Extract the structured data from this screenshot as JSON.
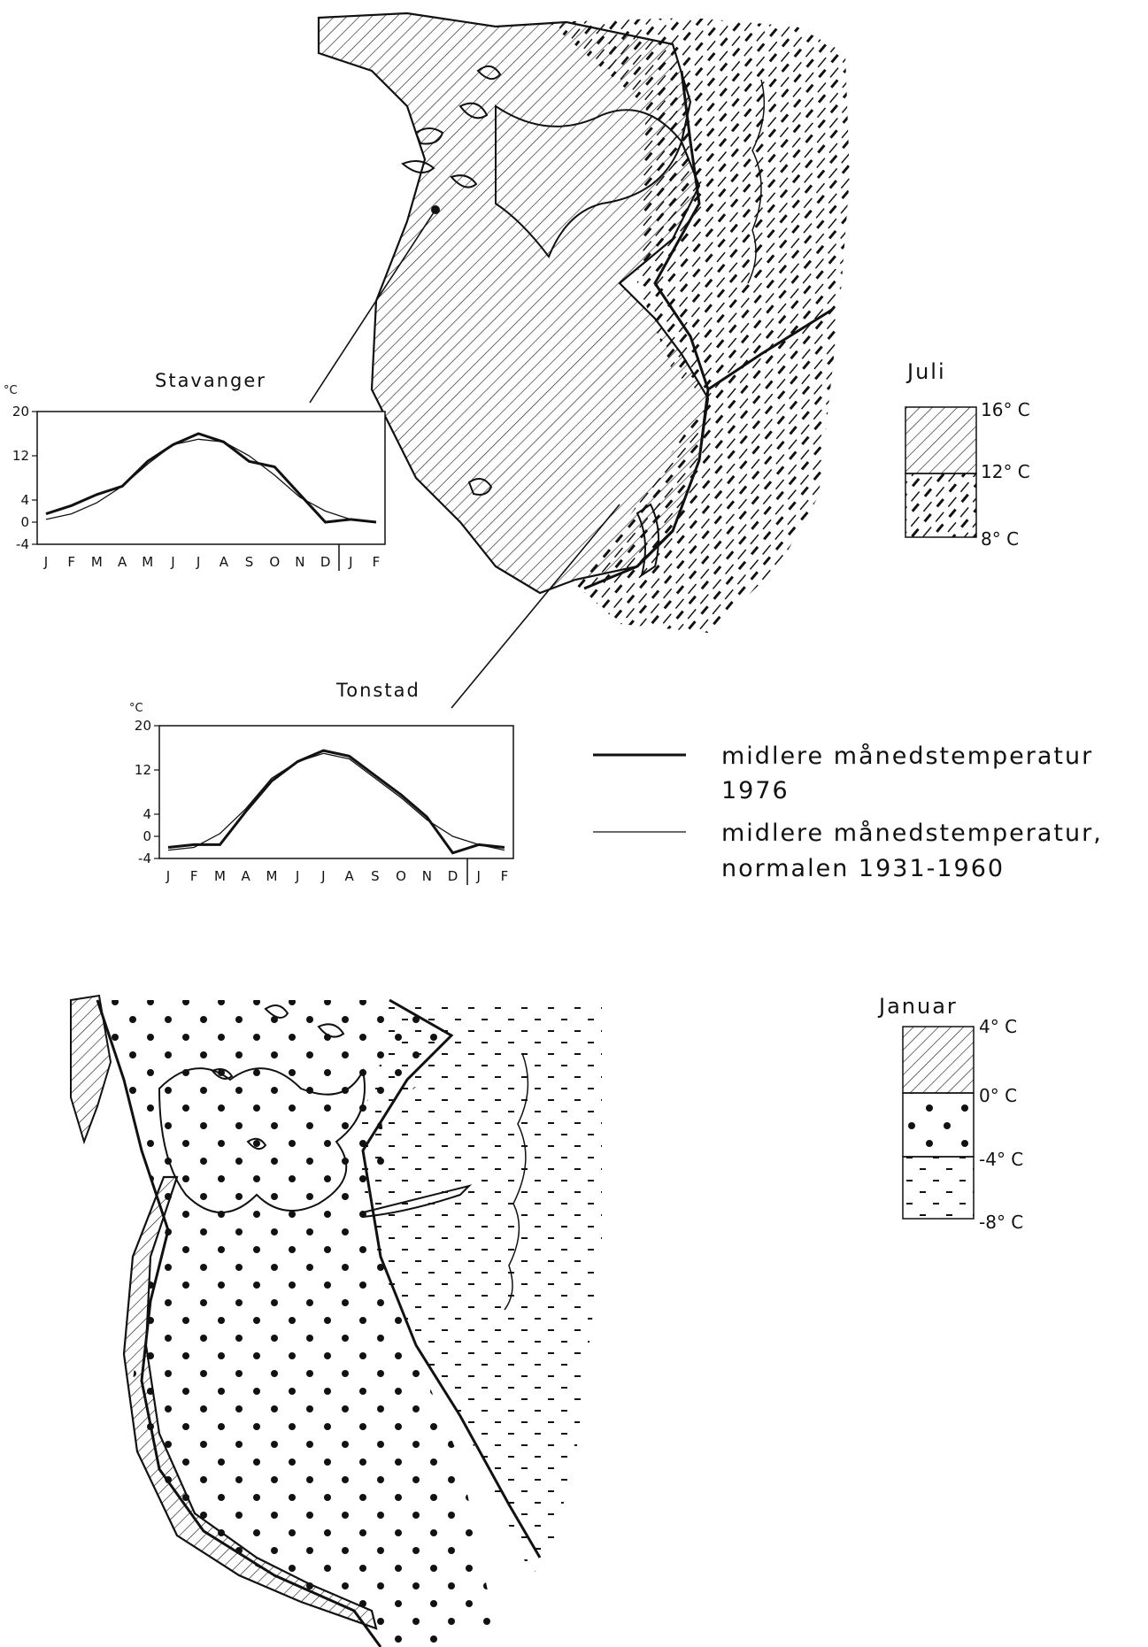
{
  "juli": {
    "title": "Juli",
    "levels": [
      "16° C",
      "12° C",
      "8° C"
    ]
  },
  "januar": {
    "title": "Januar",
    "levels": [
      "4° C",
      "0° C",
      "-4° C",
      "-8° C"
    ]
  },
  "legend": {
    "line_1976_a": "midlere månedstemperatur",
    "line_1976_b": "1976",
    "line_norm_a": "midlere månedstemperatur,",
    "line_norm_b": "normalen 1931-1960"
  },
  "chart_data": [
    {
      "type": "line",
      "title": "Stavanger",
      "ylabel": "°C",
      "ylim": [
        -4,
        20
      ],
      "yticks": [
        "20",
        "12",
        "4",
        "0",
        "-4"
      ],
      "categories": [
        "J",
        "F",
        "M",
        "A",
        "M",
        "J",
        "J",
        "A",
        "S",
        "O",
        "N",
        "D",
        "J",
        "F"
      ],
      "series": [
        {
          "name": "midlere månedstemperatur 1976",
          "values": [
            1.5,
            3.0,
            5.0,
            6.5,
            11.0,
            14.0,
            16.0,
            14.5,
            11.0,
            10.0,
            5.0,
            0.0,
            0.5,
            0.0
          ]
        },
        {
          "name": "midlere månedstemperatur, normalen 1931-1960",
          "values": [
            0.5,
            1.5,
            3.5,
            6.5,
            10.5,
            14.0,
            15.0,
            14.5,
            12.0,
            8.5,
            4.5,
            2.0,
            0.5,
            0.0
          ]
        }
      ]
    },
    {
      "type": "line",
      "title": "Tonstad",
      "ylabel": "°C",
      "ylim": [
        -4,
        20
      ],
      "yticks": [
        "20",
        "12",
        "4",
        "0",
        "-4"
      ],
      "categories": [
        "J",
        "F",
        "M",
        "A",
        "M",
        "J",
        "J",
        "A",
        "S",
        "O",
        "N",
        "D",
        "J",
        "F"
      ],
      "series": [
        {
          "name": "midlere månedstemperatur 1976",
          "values": [
            -2.0,
            -1.5,
            -1.5,
            4.5,
            10.0,
            13.5,
            15.5,
            14.5,
            11.0,
            7.5,
            3.5,
            -3.0,
            -1.5,
            -2.0
          ]
        },
        {
          "name": "midlere månedstemperatur, normalen 1931-1960",
          "values": [
            -2.5,
            -2.0,
            0.5,
            5.0,
            10.5,
            13.5,
            15.0,
            14.0,
            10.5,
            7.0,
            3.0,
            0.0,
            -1.5,
            -2.5
          ]
        }
      ]
    }
  ]
}
